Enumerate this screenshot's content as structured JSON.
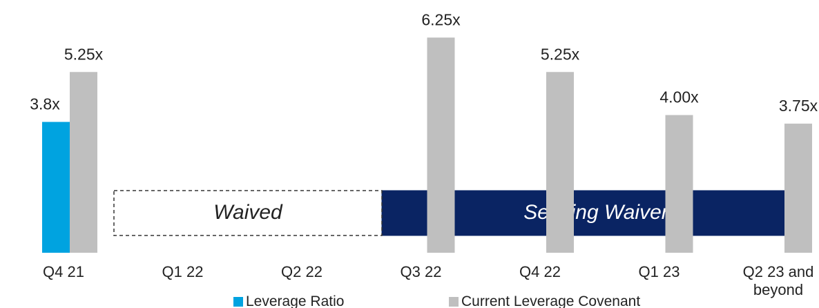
{
  "chart_data": {
    "type": "bar",
    "categories": [
      "Q4 21",
      "Q1 22",
      "Q2 22",
      "Q3 22",
      "Q4 22",
      "Q1 23",
      "Q2 23 and beyond"
    ],
    "series": [
      {
        "name": "Leverage Ratio",
        "color": "#00a3e0",
        "values": [
          3.8,
          null,
          null,
          null,
          null,
          null,
          null
        ],
        "value_labels": [
          "3.8x",
          null,
          null,
          null,
          null,
          null,
          null
        ]
      },
      {
        "name": "Current Leverage Covenant",
        "color": "#bfbfbf",
        "values": [
          5.25,
          null,
          null,
          6.25,
          5.25,
          4.0,
          3.75
        ],
        "value_labels": [
          "5.25x",
          null,
          null,
          "6.25x",
          "5.25x",
          "4.00x",
          "3.75x"
        ]
      }
    ],
    "annotations": [
      "Waived",
      "Seeking Waiver"
    ],
    "ylim": [
      0,
      7
    ]
  }
}
